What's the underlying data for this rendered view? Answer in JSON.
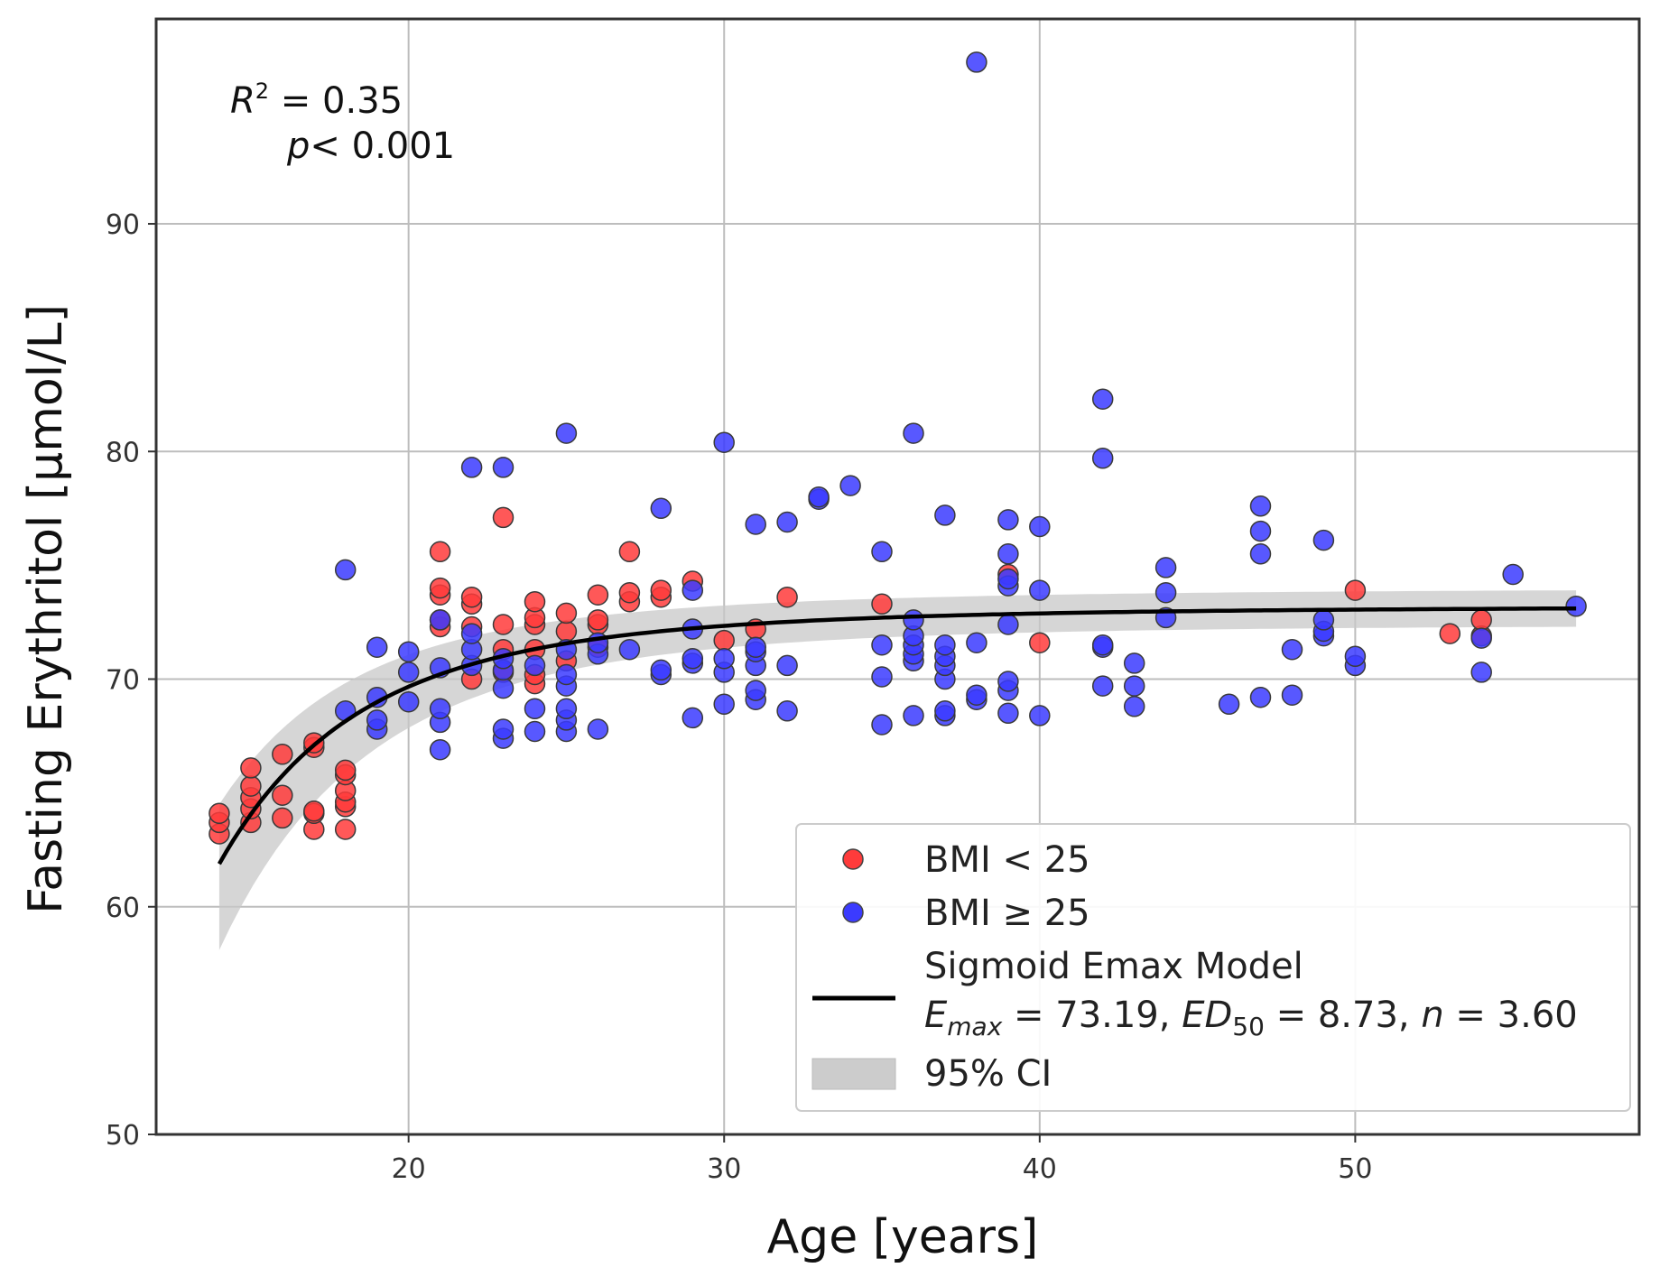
{
  "chart_data": {
    "type": "scatter",
    "xlabel": "Age [years]",
    "ylabel": "Fasting Erythritol [µmol/L]",
    "xlim": [
      12,
      59
    ],
    "ylim": [
      50,
      99
    ],
    "xticks": [
      20,
      30,
      40,
      50
    ],
    "yticks": [
      50,
      60,
      70,
      80,
      90
    ],
    "grid": true,
    "annotation": {
      "r2_label": "R",
      "r2_sup": "2",
      "r2_value": " = 0.35",
      "p_label": "p",
      "p_value": "< 0.001"
    },
    "legend": {
      "position": "bottom-right",
      "items": [
        {
          "label": "BMI < 25",
          "marker": "circle",
          "color": "#ff3b3b"
        },
        {
          "label": "BMI ≥ 25",
          "marker": "circle",
          "color": "#3b3bff"
        },
        {
          "label": "Sigmoid Emax Model",
          "marker": "line",
          "color": "#000000",
          "formula": {
            "e": "E",
            "e_sub": "max",
            "e_val": " = 73.19, ",
            "ed": "ED",
            "ed_sub": "50",
            "ed_val": " = 8.73, ",
            "n": "n",
            "n_val": " = 3.60"
          }
        },
        {
          "label": "95% CI",
          "marker": "patch",
          "color": "#cccccc"
        }
      ]
    },
    "model": {
      "name": "Sigmoid Emax Model",
      "emax": 73.19,
      "ed50": 8.73,
      "n": 3.6,
      "x_range": [
        14,
        57
      ],
      "color": "#000000"
    },
    "ci": {
      "x_range": [
        14,
        57
      ],
      "color": "#c8c8c8",
      "lower_start": 58.1,
      "upper_start": 64.5,
      "lower_end": 72.3,
      "upper_end": 73.9
    },
    "series": [
      {
        "name": "BMI < 25",
        "color": "#ff3b3b",
        "points": [
          [
            14,
            63.2
          ],
          [
            14,
            63.7
          ],
          [
            14,
            64.1
          ],
          [
            15,
            63.7
          ],
          [
            15,
            64.3
          ],
          [
            15,
            64.8
          ],
          [
            15,
            65.3
          ],
          [
            15,
            66.1
          ],
          [
            16,
            63.9
          ],
          [
            16,
            64.9
          ],
          [
            16,
            66.7
          ],
          [
            17,
            63.4
          ],
          [
            17,
            64.1
          ],
          [
            17,
            64.2
          ],
          [
            17,
            67.0
          ],
          [
            17,
            67.2
          ],
          [
            18,
            63.4
          ],
          [
            18,
            64.4
          ],
          [
            18,
            64.6
          ],
          [
            18,
            65.1
          ],
          [
            18,
            65.8
          ],
          [
            18,
            66.0
          ],
          [
            21,
            72.3
          ],
          [
            21,
            72.6
          ],
          [
            21,
            73.7
          ],
          [
            21,
            74.0
          ],
          [
            21,
            75.6
          ],
          [
            22,
            70.0
          ],
          [
            22,
            72.3
          ],
          [
            22,
            73.3
          ],
          [
            22,
            73.6
          ],
          [
            23,
            70.3
          ],
          [
            23,
            71.3
          ],
          [
            23,
            72.4
          ],
          [
            23,
            77.1
          ],
          [
            24,
            69.8
          ],
          [
            24,
            70.2
          ],
          [
            24,
            71.3
          ],
          [
            24,
            72.4
          ],
          [
            24,
            72.7
          ],
          [
            24,
            73.4
          ],
          [
            25,
            70.8
          ],
          [
            25,
            72.1
          ],
          [
            25,
            72.9
          ],
          [
            26,
            71.4
          ],
          [
            26,
            72.4
          ],
          [
            26,
            72.6
          ],
          [
            26,
            73.7
          ],
          [
            27,
            73.4
          ],
          [
            27,
            73.8
          ],
          [
            27,
            75.6
          ],
          [
            28,
            73.6
          ],
          [
            28,
            73.9
          ],
          [
            29,
            74.3
          ],
          [
            30,
            71.7
          ],
          [
            31,
            72.2
          ],
          [
            32,
            73.6
          ],
          [
            35,
            73.3
          ],
          [
            39,
            74.6
          ],
          [
            40,
            71.6
          ],
          [
            50,
            73.9
          ],
          [
            53,
            72.0
          ],
          [
            54,
            71.9
          ],
          [
            54,
            72.6
          ]
        ]
      },
      {
        "name": "BMI ≥ 25",
        "color": "#3b3bff",
        "points": [
          [
            18,
            68.6
          ],
          [
            18,
            74.8
          ],
          [
            19,
            67.8
          ],
          [
            19,
            68.2
          ],
          [
            19,
            69.2
          ],
          [
            19,
            71.4
          ],
          [
            20,
            69.0
          ],
          [
            20,
            70.3
          ],
          [
            20,
            71.2
          ],
          [
            21,
            66.9
          ],
          [
            21,
            68.1
          ],
          [
            21,
            68.7
          ],
          [
            21,
            70.5
          ],
          [
            21,
            72.6
          ],
          [
            22,
            70.6
          ],
          [
            22,
            71.3
          ],
          [
            22,
            72.0
          ],
          [
            22,
            79.3
          ],
          [
            23,
            67.4
          ],
          [
            23,
            67.8
          ],
          [
            23,
            69.6
          ],
          [
            23,
            70.4
          ],
          [
            23,
            70.9
          ],
          [
            23,
            79.3
          ],
          [
            24,
            67.7
          ],
          [
            24,
            68.7
          ],
          [
            24,
            70.6
          ],
          [
            25,
            67.7
          ],
          [
            25,
            68.2
          ],
          [
            25,
            68.7
          ],
          [
            25,
            69.7
          ],
          [
            25,
            70.2
          ],
          [
            25,
            71.3
          ],
          [
            25,
            80.8
          ],
          [
            26,
            67.8
          ],
          [
            26,
            71.1
          ],
          [
            26,
            71.6
          ],
          [
            27,
            71.3
          ],
          [
            28,
            70.2
          ],
          [
            28,
            70.4
          ],
          [
            28,
            77.5
          ],
          [
            29,
            68.3
          ],
          [
            29,
            70.7
          ],
          [
            29,
            70.9
          ],
          [
            29,
            72.2
          ],
          [
            29,
            73.9
          ],
          [
            30,
            68.9
          ],
          [
            30,
            70.3
          ],
          [
            30,
            70.9
          ],
          [
            30,
            80.4
          ],
          [
            31,
            69.1
          ],
          [
            31,
            69.5
          ],
          [
            31,
            70.6
          ],
          [
            31,
            71.2
          ],
          [
            31,
            71.4
          ],
          [
            31,
            76.8
          ],
          [
            32,
            68.6
          ],
          [
            32,
            70.6
          ],
          [
            32,
            76.9
          ],
          [
            33,
            77.9
          ],
          [
            33,
            78.0
          ],
          [
            34,
            78.5
          ],
          [
            35,
            68.0
          ],
          [
            35,
            70.1
          ],
          [
            35,
            71.5
          ],
          [
            35,
            75.6
          ],
          [
            36,
            68.4
          ],
          [
            36,
            70.8
          ],
          [
            36,
            71.1
          ],
          [
            36,
            71.5
          ],
          [
            36,
            71.9
          ],
          [
            36,
            72.6
          ],
          [
            36,
            80.8
          ],
          [
            37,
            68.4
          ],
          [
            37,
            68.6
          ],
          [
            37,
            70.0
          ],
          [
            37,
            70.6
          ],
          [
            37,
            71.0
          ],
          [
            37,
            71.5
          ],
          [
            37,
            77.2
          ],
          [
            38,
            69.1
          ],
          [
            38,
            69.3
          ],
          [
            38,
            71.6
          ],
          [
            38,
            97.1
          ],
          [
            39,
            68.5
          ],
          [
            39,
            69.5
          ],
          [
            39,
            69.9
          ],
          [
            39,
            72.4
          ],
          [
            39,
            74.1
          ],
          [
            39,
            74.4
          ],
          [
            39,
            75.5
          ],
          [
            39,
            77.0
          ],
          [
            40,
            68.4
          ],
          [
            40,
            73.9
          ],
          [
            40,
            76.7
          ],
          [
            42,
            69.7
          ],
          [
            42,
            71.4
          ],
          [
            42,
            71.5
          ],
          [
            42,
            79.7
          ],
          [
            42,
            82.3
          ],
          [
            43,
            68.8
          ],
          [
            43,
            69.7
          ],
          [
            43,
            70.7
          ],
          [
            44,
            72.7
          ],
          [
            44,
            73.8
          ],
          [
            44,
            74.9
          ],
          [
            46,
            68.9
          ],
          [
            47,
            69.2
          ],
          [
            47,
            75.5
          ],
          [
            47,
            76.5
          ],
          [
            47,
            77.6
          ],
          [
            48,
            69.3
          ],
          [
            48,
            71.3
          ],
          [
            49,
            71.9
          ],
          [
            49,
            72.1
          ],
          [
            49,
            72.6
          ],
          [
            49,
            76.1
          ],
          [
            50,
            70.6
          ],
          [
            50,
            71.0
          ],
          [
            54,
            70.3
          ],
          [
            54,
            71.8
          ],
          [
            55,
            74.6
          ],
          [
            57,
            73.2
          ]
        ]
      }
    ]
  }
}
